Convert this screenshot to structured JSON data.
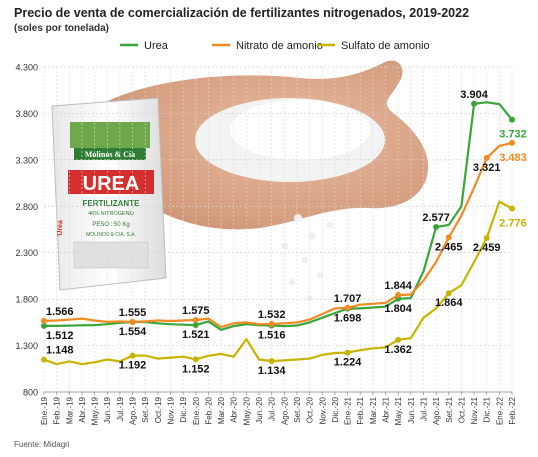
{
  "title": "Precio de venta de comercialización de fertilizantes nitrogenados, 2019-2022",
  "subtitle": "(soles por tonelada)",
  "source": "Fuente: Midagri",
  "illustration": {
    "bag_brand": "Molinos & Cía",
    "bag_product": "UREA",
    "bag_type": "FERTILIZANTE",
    "bag_content": "46% NITROGENO",
    "bag_weight": "PESO : 50 Kg",
    "bag_importer": "MOLINOS & CIA. S.A.",
    "bag_side": "Urea"
  },
  "chart_data": {
    "type": "line",
    "ylim": [
      800,
      4300
    ],
    "yticks": [
      "800",
      "1.300",
      "1.800",
      "2.300",
      "2.800",
      "3.300",
      "3.800",
      "4.300"
    ],
    "legend_position": "top",
    "grid": true,
    "categories": [
      "Ene.-19",
      "Feb.-19",
      "Mar.-19",
      "Abr.-19",
      "May.-19",
      "Jun.-19",
      "Jul.-19",
      "Ago.-19",
      "Set.-19",
      "Oct.-19",
      "Nov.-19",
      "Dic.-19",
      "Ene.-20",
      "Feb.-20",
      "Mar.-20",
      "Abr.-20",
      "May.-20",
      "Jun.-20",
      "Jul.-20",
      "Ago.-20",
      "Set.-20",
      "Oct.-20",
      "Nov.-20",
      "Dic.-20",
      "Ene.-21",
      "Feb.-21",
      "Mar.-21",
      "Abr.-21",
      "May.-21",
      "Jun.-21",
      "Jul.-21",
      "Ago.-21",
      "Set.-21",
      "Oct.-21",
      "Nov.-21",
      "Dic.-21",
      "Ene.-22",
      "Feb.-22"
    ],
    "series": [
      {
        "name": "Urea",
        "color": "#3aa53a",
        "values": [
          1512,
          1512,
          1515,
          1518,
          1520,
          1530,
          1545,
          1554,
          1554,
          1540,
          1530,
          1525,
          1521,
          1560,
          1470,
          1510,
          1530,
          1520,
          1516,
          1510,
          1516,
          1550,
          1600,
          1650,
          1698,
          1700,
          1710,
          1720,
          1804,
          1810,
          2100,
          2577,
          2600,
          2800,
          3904,
          3920,
          3900,
          3732
        ]
      },
      {
        "name": "Nitrato de amonio",
        "color": "#f08a24",
        "values": [
          1566,
          1570,
          1580,
          1590,
          1570,
          1555,
          1560,
          1555,
          1560,
          1570,
          1565,
          1570,
          1575,
          1590,
          1500,
          1540,
          1550,
          1530,
          1532,
          1540,
          1550,
          1580,
          1640,
          1700,
          1707,
          1740,
          1750,
          1760,
          1844,
          1850,
          2000,
          2200,
          2465,
          2700,
          3000,
          3321,
          3450,
          3483
        ]
      },
      {
        "name": "Sulfato de amonio",
        "color": "#c8b400",
        "values": [
          1148,
          1100,
          1130,
          1100,
          1120,
          1150,
          1130,
          1192,
          1192,
          1160,
          1170,
          1180,
          1152,
          1190,
          1210,
          1180,
          1370,
          1150,
          1134,
          1140,
          1150,
          1160,
          1200,
          1220,
          1224,
          1250,
          1270,
          1280,
          1362,
          1380,
          1600,
          1700,
          1864,
          1950,
          2200,
          2459,
          2850,
          2776
        ]
      }
    ],
    "annotations": [
      {
        "series": 0,
        "index": 0,
        "text": "1.512",
        "pos": "below"
      },
      {
        "series": 0,
        "index": 7,
        "text": "1.554",
        "pos": "below"
      },
      {
        "series": 0,
        "index": 12,
        "text": "1.521",
        "pos": "below"
      },
      {
        "series": 0,
        "index": 18,
        "text": "1.516",
        "pos": "below"
      },
      {
        "series": 0,
        "index": 24,
        "text": "1.698",
        "pos": "below"
      },
      {
        "series": 0,
        "index": 28,
        "text": "1.804",
        "pos": "below"
      },
      {
        "series": 0,
        "index": 31,
        "text": "2.577",
        "pos": "above"
      },
      {
        "series": 0,
        "index": 34,
        "text": "3.904",
        "pos": "above"
      },
      {
        "series": 0,
        "index": 37,
        "text": "3.732",
        "pos": "end"
      },
      {
        "series": 1,
        "index": 0,
        "text": "1.566",
        "pos": "above"
      },
      {
        "series": 1,
        "index": 7,
        "text": "1.555",
        "pos": "above"
      },
      {
        "series": 1,
        "index": 12,
        "text": "1.575",
        "pos": "above"
      },
      {
        "series": 1,
        "index": 18,
        "text": "1.532",
        "pos": "above"
      },
      {
        "series": 1,
        "index": 24,
        "text": "1.707",
        "pos": "above"
      },
      {
        "series": 1,
        "index": 28,
        "text": "1.844",
        "pos": "above"
      },
      {
        "series": 1,
        "index": 32,
        "text": "2.465",
        "pos": "below"
      },
      {
        "series": 1,
        "index": 35,
        "text": "3.321",
        "pos": "below"
      },
      {
        "series": 1,
        "index": 37,
        "text": "3.483",
        "pos": "end"
      },
      {
        "series": 2,
        "index": 0,
        "text": "1.148",
        "pos": "above"
      },
      {
        "series": 2,
        "index": 7,
        "text": "1.192",
        "pos": "below"
      },
      {
        "series": 2,
        "index": 12,
        "text": "1.152",
        "pos": "below"
      },
      {
        "series": 2,
        "index": 18,
        "text": "1.134",
        "pos": "below"
      },
      {
        "series": 2,
        "index": 24,
        "text": "1.224",
        "pos": "below"
      },
      {
        "series": 2,
        "index": 28,
        "text": "1.362",
        "pos": "below"
      },
      {
        "series": 2,
        "index": 32,
        "text": "1.864",
        "pos": "below"
      },
      {
        "series": 2,
        "index": 35,
        "text": "2.459",
        "pos": "below"
      },
      {
        "series": 2,
        "index": 37,
        "text": "2.776",
        "pos": "end"
      }
    ]
  }
}
